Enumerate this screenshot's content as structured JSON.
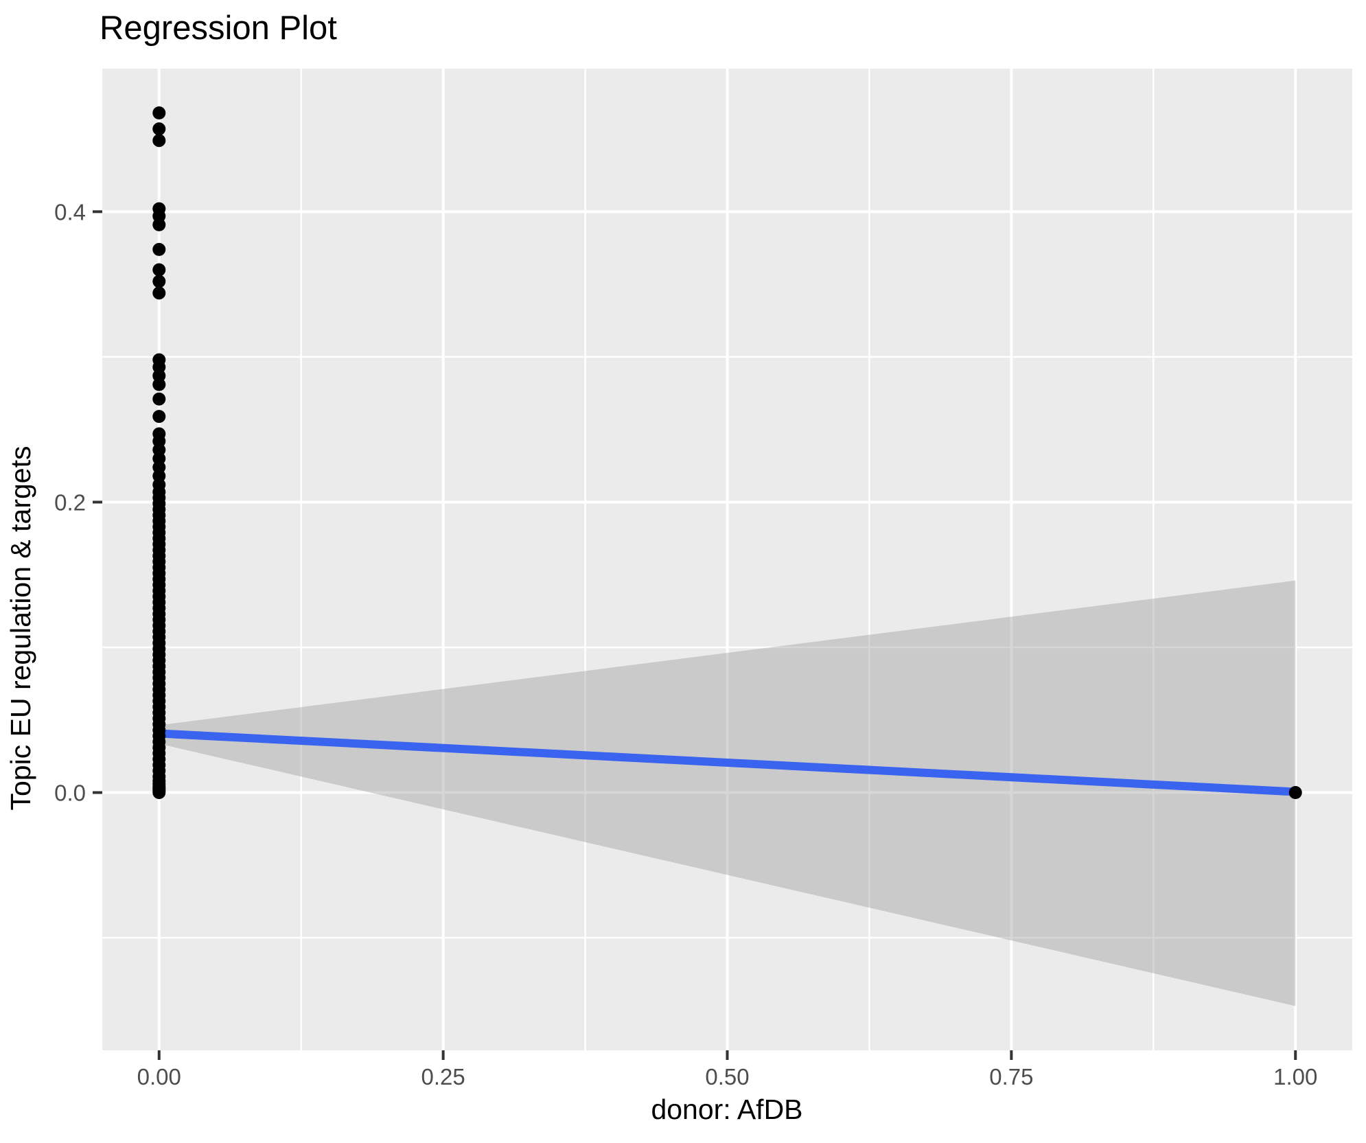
{
  "title": "Regression Plot",
  "chart_data": {
    "type": "scatter",
    "title": "Regression Plot",
    "xlabel": "donor: AfDB",
    "ylabel": "Topic EU regulation & targets",
    "xlim": [
      -0.05,
      1.05
    ],
    "ylim": [
      -0.1775,
      0.4985
    ],
    "x_ticks": [
      0.0,
      0.25,
      0.5,
      0.75,
      1.0
    ],
    "x_tick_labels": [
      "0.00",
      "0.25",
      "0.50",
      "0.75",
      "1.00"
    ],
    "x_minor_ticks": [
      0.125,
      0.375,
      0.625,
      0.875
    ],
    "y_ticks": [
      0.0,
      0.2,
      0.4
    ],
    "y_tick_labels": [
      "0.0",
      "0.2",
      "0.4"
    ],
    "y_minor_ticks": [
      -0.1,
      0.1,
      0.3
    ],
    "grid": true,
    "legend": false,
    "series": [
      {
        "name": "observations",
        "marker": "circle",
        "groups": [
          {
            "x": 0,
            "y": [
              0.468,
              0.457,
              0.449,
              0.402,
              0.397,
              0.391,
              0.374,
              0.36,
              0.352,
              0.344,
              0.298,
              0.293,
              0.287,
              0.281,
              0.271,
              0.259,
              0.247,
              0.242,
              0.236,
              0.23,
              0.224,
              0.218,
              0.212,
              0.207,
              0.203,
              0.199,
              0.195,
              0.191,
              0.187,
              0.183,
              0.179,
              0.175,
              0.171,
              0.167,
              0.163,
              0.159,
              0.155,
              0.151,
              0.147,
              0.143,
              0.139,
              0.135,
              0.131,
              0.127,
              0.123,
              0.119,
              0.115,
              0.111,
              0.107,
              0.103,
              0.099,
              0.095,
              0.091,
              0.087,
              0.083,
              0.079,
              0.075,
              0.071,
              0.067,
              0.063,
              0.059,
              0.055,
              0.051,
              0.047,
              0.043,
              0.039,
              0.035,
              0.031,
              0.027,
              0.023,
              0.019,
              0.015,
              0.011,
              0.008,
              0.006,
              0.004,
              0.003,
              0.002,
              0.001,
              0.0
            ]
          },
          {
            "x": 1,
            "y": [
              0.0
            ]
          }
        ]
      }
    ],
    "regression_line": {
      "x": [
        0,
        1
      ],
      "y": [
        0.0407,
        0.0005
      ]
    },
    "confidence_band": {
      "x": [
        0,
        1
      ],
      "upper": [
        0.0464,
        0.146
      ],
      "lower": [
        0.0336,
        -0.147
      ]
    }
  },
  "styles": {
    "panel_bg": "#EBEBEB",
    "grid_color": "#FFFFFF",
    "point_color": "#000000",
    "line_color": "#3A63F0",
    "band_fill": "rgba(153,153,153,0.40)",
    "tick_color": "#333333",
    "tick_label_color": "#4D4D4D",
    "title_color": "#000000"
  }
}
